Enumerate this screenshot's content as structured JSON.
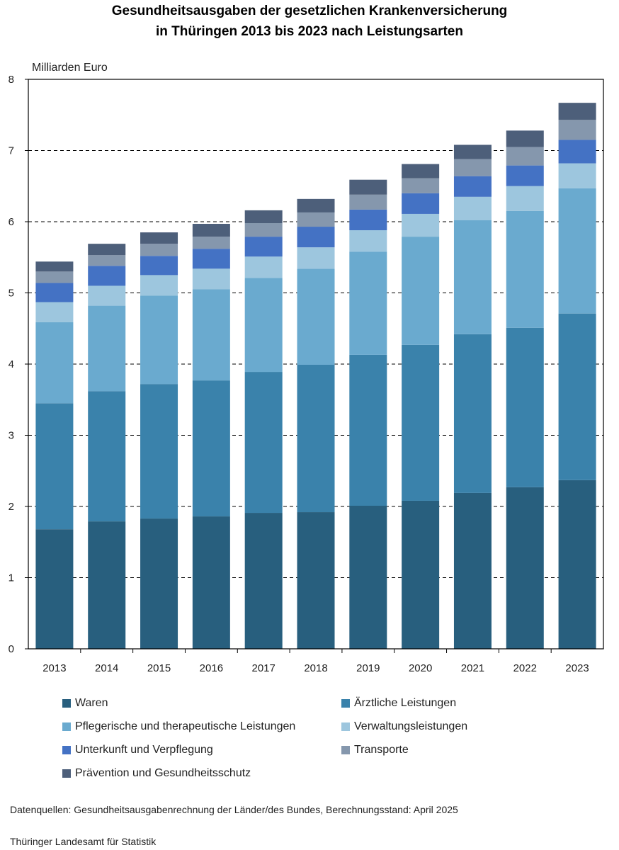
{
  "chart_data": {
    "type": "bar",
    "stacked": true,
    "title": [
      "Gesundheitsausgaben der gesetzlichen Krankenversicherung",
      "in Thüringen 2013 bis 2023 nach Leistungsarten"
    ],
    "ylabel": "Milliarden Euro",
    "xlabel": "",
    "ylim": [
      0,
      8
    ],
    "yticks": [
      "0",
      "1",
      "2",
      "3",
      "4",
      "5",
      "6",
      "7",
      "8"
    ],
    "grid": true,
    "legend_position": "bottom",
    "categories": [
      "2013",
      "2014",
      "2015",
      "2016",
      "2017",
      "2018",
      "2019",
      "2020",
      "2021",
      "2022",
      "2023"
    ],
    "series": [
      {
        "name": "Waren",
        "color": "#285f7e",
        "values": [
          1.68,
          1.79,
          1.83,
          1.86,
          1.91,
          1.92,
          2.01,
          2.08,
          2.19,
          2.27,
          2.37
        ]
      },
      {
        "name": "Ärztliche Leistungen",
        "color": "#3a82ab",
        "values": [
          1.77,
          1.83,
          1.89,
          1.91,
          1.98,
          2.07,
          2.12,
          2.19,
          2.23,
          2.24,
          2.34
        ]
      },
      {
        "name": "Pflegerische und therapeutische Leistungen",
        "color": "#6aaacf",
        "values": [
          1.14,
          1.2,
          1.24,
          1.28,
          1.32,
          1.35,
          1.45,
          1.52,
          1.6,
          1.64,
          1.76
        ]
      },
      {
        "name": "Verwaltungsleistungen",
        "color": "#9dc6de",
        "values": [
          0.28,
          0.28,
          0.29,
          0.29,
          0.3,
          0.3,
          0.3,
          0.32,
          0.33,
          0.35,
          0.35
        ]
      },
      {
        "name": "Unterkunft und Verpflegung",
        "color": "#4472c4",
        "values": [
          0.27,
          0.28,
          0.27,
          0.28,
          0.28,
          0.29,
          0.29,
          0.29,
          0.29,
          0.29,
          0.33
        ]
      },
      {
        "name": "Transporte",
        "color": "#8597ad",
        "values": [
          0.16,
          0.15,
          0.17,
          0.17,
          0.19,
          0.2,
          0.21,
          0.21,
          0.24,
          0.26,
          0.28
        ]
      },
      {
        "name": "Prävention und Gesundheitsschutz",
        "color": "#4d5f7a",
        "values": [
          0.14,
          0.16,
          0.16,
          0.18,
          0.18,
          0.19,
          0.21,
          0.2,
          0.2,
          0.23,
          0.24
        ]
      }
    ]
  },
  "footer": {
    "source": "Datenquellen: Gesundheitsausgabenrechnung der Länder/des Bundes, Berechnungsstand: April 2025",
    "publisher": "Thüringer Landesamt für Statistik"
  }
}
